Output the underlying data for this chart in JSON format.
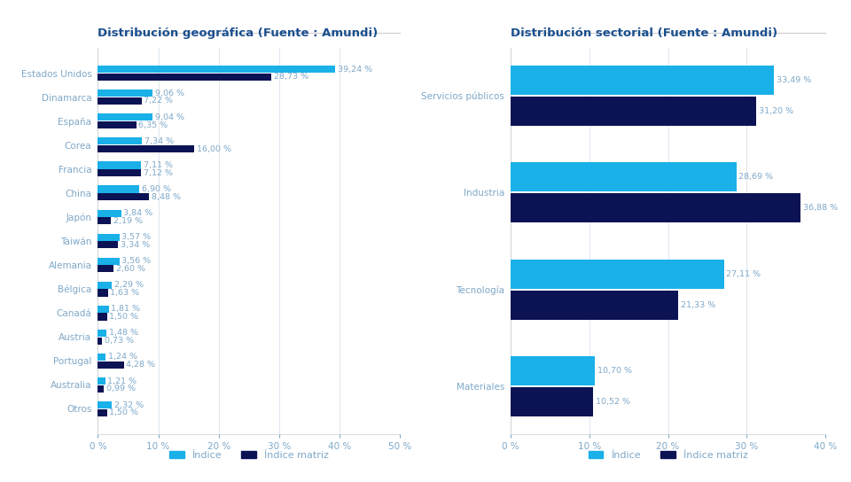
{
  "geo_title": "Distribución geográfica (Fuente : Amundi)",
  "sec_title": "Distribución sectorial (Fuente : Amundi)",
  "geo_categories": [
    "Estados Unidos",
    "Dinamarca",
    "España",
    "Corea",
    "Francia",
    "China",
    "Japón",
    "Taiwán",
    "Alemania",
    "Bélgica",
    "Canadá",
    "Austria",
    "Portugal",
    "Australia",
    "Otros"
  ],
  "geo_indice": [
    39.24,
    9.06,
    9.04,
    7.34,
    7.11,
    6.9,
    3.84,
    3.57,
    3.56,
    2.29,
    1.81,
    1.48,
    1.24,
    1.21,
    2.32
  ],
  "geo_indice_matriz": [
    28.73,
    7.22,
    6.35,
    16.0,
    7.12,
    8.48,
    2.19,
    3.34,
    2.6,
    1.63,
    1.5,
    0.73,
    4.28,
    0.99,
    1.5
  ],
  "sec_categories": [
    "Servicios públicos",
    "Industria",
    "Tecnología",
    "Materiales"
  ],
  "sec_indice": [
    33.49,
    28.69,
    27.11,
    10.7
  ],
  "sec_indice_matriz": [
    31.2,
    36.88,
    21.33,
    10.52
  ],
  "color_indice": "#1AB0E8",
  "color_matriz": "#0B1354",
  "background": "#FFFFFF",
  "label_indice": "Índice",
  "label_matriz": "Índice matriz",
  "geo_xlim": [
    0,
    50
  ],
  "sec_xlim": [
    0,
    40
  ],
  "geo_xticks": [
    0,
    10,
    20,
    30,
    40,
    50
  ],
  "sec_xticks": [
    0,
    10,
    20,
    30,
    40
  ],
  "title_color": "#1B4F8E",
  "tick_label_color": "#7FA8C8",
  "bar_label_color": "#7FA8C8",
  "title_fontsize": 9.5,
  "tick_fontsize": 7.5,
  "bar_label_fontsize": 6.8
}
